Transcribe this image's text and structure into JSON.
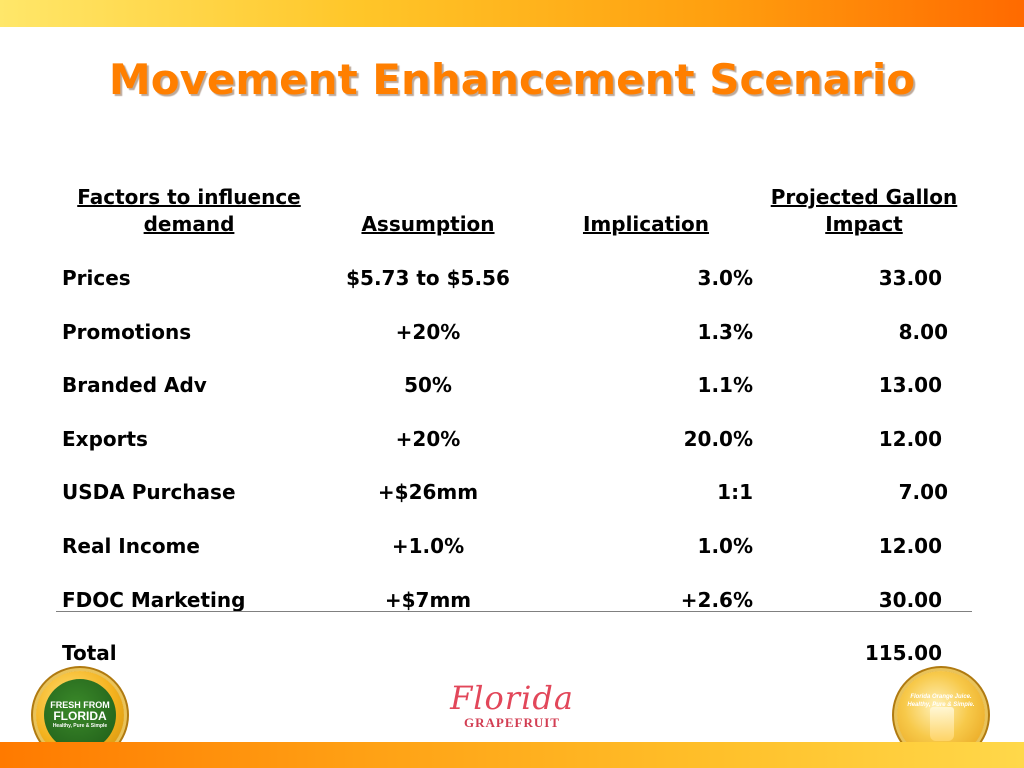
{
  "slide": {
    "title": "Movement Enhancement Scenario",
    "colors": {
      "title": "#ff7f00",
      "band_start": "#ffe76a",
      "band_end": "#ff6a00"
    }
  },
  "table": {
    "headers": {
      "factor_line1": "Factors to influence",
      "factor_line2": "demand",
      "assumption": "Assumption",
      "implication": "Implication",
      "impact_line1": "Projected Gallon",
      "impact_line2": "Impact"
    },
    "rows": [
      {
        "factor": "Prices",
        "assumption": "$5.73 to $5.56",
        "implication": "3.0%",
        "impact": "33.00"
      },
      {
        "factor": "Promotions",
        "assumption": "+20%",
        "implication": "1.3%",
        "impact": "8.00"
      },
      {
        "factor": "Branded Adv",
        "assumption": "50%",
        "implication": "1.1%",
        "impact": "13.00"
      },
      {
        "factor": "Exports",
        "assumption": "+20%",
        "implication": "20.0%",
        "impact": "12.00"
      },
      {
        "factor": "USDA Purchase",
        "assumption": "+$26mm",
        "implication": "1:1",
        "impact": "7.00"
      },
      {
        "factor": "Real Income",
        "assumption": "+1.0%",
        "implication": "1.0%",
        "impact": "12.00"
      },
      {
        "factor": "FDOC Marketing",
        "assumption": "+$7mm",
        "implication": "+2.6%",
        "impact": "30.00"
      }
    ],
    "total": {
      "label": "Total",
      "impact": "115.00"
    }
  },
  "logos": {
    "left_seal": {
      "line1": "FRESH FROM",
      "line2": "FLORIDA",
      "line3": "Healthy, Pure & Simple"
    },
    "center_brand": {
      "script": "Florida",
      "sub": "GRAPEFRUIT"
    },
    "right_seal": {
      "text": "Florida Orange Juice. Healthy, Pure & Simple."
    }
  }
}
